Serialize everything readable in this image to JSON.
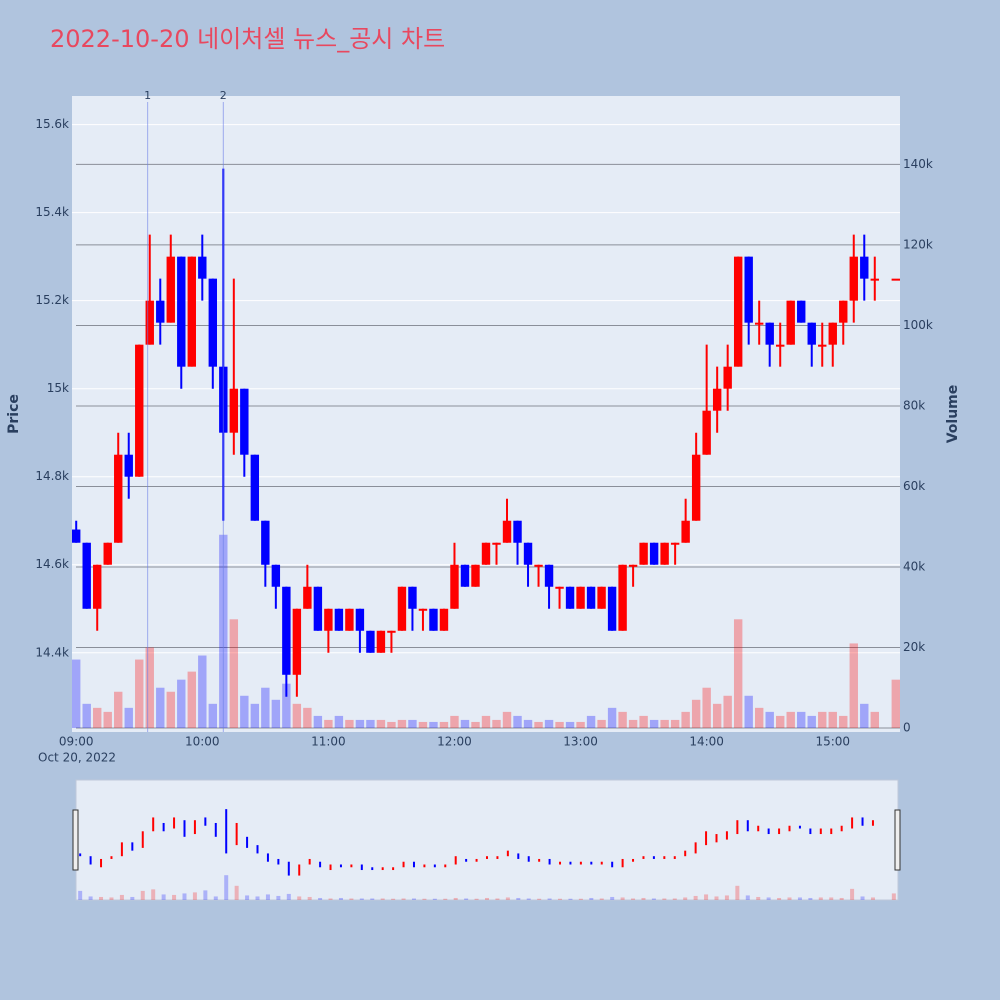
{
  "chart_data": {
    "type": "candlestick",
    "title": "2022-10-20 네이처셀 뉴스_공시 차트",
    "y_title": "Price",
    "y2_title": "Volume",
    "x_date_label": "Oct 20, 2022",
    "up_color": "#ff0000",
    "down_color": "#0000ff",
    "x": [
      "09:00",
      "09:05",
      "09:10",
      "09:15",
      "09:20",
      "09:25",
      "09:30",
      "09:35",
      "09:40",
      "09:45",
      "09:50",
      "09:55",
      "10:00",
      "10:05",
      "10:10",
      "10:15",
      "10:20",
      "10:25",
      "10:30",
      "10:35",
      "10:40",
      "10:45",
      "10:50",
      "10:55",
      "11:00",
      "11:05",
      "11:10",
      "11:15",
      "11:20",
      "11:25",
      "11:30",
      "11:35",
      "11:40",
      "11:45",
      "11:50",
      "11:55",
      "12:00",
      "12:05",
      "12:10",
      "12:15",
      "12:20",
      "12:25",
      "12:30",
      "12:35",
      "12:40",
      "12:45",
      "12:50",
      "12:55",
      "13:00",
      "13:05",
      "13:10",
      "13:15",
      "13:20",
      "13:25",
      "13:30",
      "13:35",
      "13:40",
      "13:45",
      "13:50",
      "13:55",
      "14:00",
      "14:05",
      "14:10",
      "14:15",
      "14:20",
      "14:25",
      "14:30",
      "14:35",
      "14:40",
      "14:45",
      "14:50",
      "14:55",
      "15:00",
      "15:05",
      "15:10",
      "15:15",
      "15:20",
      "15:30"
    ],
    "open": [
      14680,
      14650,
      14500,
      14600,
      14650,
      14850,
      14800,
      15100,
      15200,
      15150,
      15300,
      15050,
      15300,
      15250,
      15050,
      14900,
      15000,
      14850,
      14700,
      14600,
      14550,
      14350,
      14500,
      14550,
      14450,
      14500,
      14450,
      14500,
      14450,
      14400,
      14450,
      14450,
      14550,
      14500,
      14500,
      14450,
      14500,
      14600,
      14550,
      14600,
      14650,
      14650,
      14700,
      14650,
      14600,
      14600,
      14550,
      14550,
      14500,
      14550,
      14500,
      14550,
      14450,
      14600,
      14600,
      14650,
      14600,
      14650,
      14650,
      14700,
      14850,
      14950,
      15000,
      15050,
      15300,
      15150,
      15150,
      15100,
      15100,
      15200,
      15150,
      15100,
      15100,
      15150,
      15200,
      15300,
      15250,
      15250
    ],
    "high": [
      14700,
      14650,
      14600,
      14650,
      14900,
      14900,
      15100,
      15350,
      15250,
      15350,
      15300,
      15300,
      15350,
      15250,
      15500,
      15250,
      15000,
      14850,
      14700,
      14600,
      14550,
      14500,
      14600,
      14550,
      14500,
      14500,
      14500,
      14500,
      14450,
      14450,
      14450,
      14550,
      14550,
      14500,
      14500,
      14500,
      14650,
      14600,
      14600,
      14650,
      14650,
      14750,
      14700,
      14650,
      14600,
      14600,
      14550,
      14550,
      14550,
      14550,
      14550,
      14550,
      14600,
      14600,
      14650,
      14650,
      14650,
      14650,
      14750,
      14900,
      15100,
      15050,
      15100,
      15300,
      15300,
      15200,
      15150,
      15150,
      15200,
      15200,
      15150,
      15150,
      15150,
      15200,
      15350,
      15350,
      15300,
      15250
    ],
    "low": [
      14650,
      14500,
      14450,
      14600,
      14650,
      14750,
      14800,
      15100,
      15100,
      15150,
      15000,
      15050,
      15200,
      15000,
      14700,
      14850,
      14800,
      14700,
      14550,
      14500,
      14300,
      14300,
      14500,
      14450,
      14400,
      14450,
      14450,
      14400,
      14400,
      14400,
      14400,
      14450,
      14450,
      14450,
      14450,
      14450,
      14500,
      14550,
      14550,
      14600,
      14600,
      14650,
      14600,
      14550,
      14550,
      14500,
      14500,
      14500,
      14500,
      14500,
      14500,
      14450,
      14450,
      14550,
      14600,
      14600,
      14600,
      14600,
      14650,
      14700,
      14850,
      14900,
      14950,
      15050,
      15100,
      15100,
      15050,
      15050,
      15100,
      15150,
      15050,
      15050,
      15050,
      15100,
      15150,
      15200,
      15200,
      15250
    ],
    "close": [
      14650,
      14500,
      14600,
      14650,
      14850,
      14800,
      15100,
      15200,
      15150,
      15300,
      15050,
      15300,
      15250,
      15050,
      14900,
      15000,
      14850,
      14700,
      14600,
      14550,
      14350,
      14500,
      14550,
      14450,
      14500,
      14450,
      14500,
      14450,
      14400,
      14450,
      14450,
      14550,
      14500,
      14500,
      14450,
      14500,
      14600,
      14550,
      14600,
      14650,
      14650,
      14700,
      14650,
      14600,
      14600,
      14550,
      14550,
      14500,
      14550,
      14500,
      14550,
      14450,
      14600,
      14600,
      14650,
      14600,
      14650,
      14650,
      14700,
      14850,
      14950,
      15000,
      15050,
      15300,
      15150,
      15150,
      15100,
      15100,
      15200,
      15150,
      15100,
      15100,
      15150,
      15200,
      15300,
      15250,
      15250,
      15250
    ],
    "volume": [
      17000,
      6000,
      5000,
      4000,
      9000,
      5000,
      17000,
      20000,
      10000,
      9000,
      12000,
      14000,
      18000,
      6000,
      48000,
      27000,
      8000,
      6000,
      10000,
      7000,
      11000,
      6000,
      5000,
      3000,
      2000,
      3000,
      2000,
      2000,
      2000,
      2000,
      1500,
      2000,
      2000,
      1500,
      1500,
      1500,
      3000,
      2000,
      1500,
      3000,
      2000,
      4000,
      3000,
      2000,
      1500,
      2000,
      1500,
      1500,
      1500,
      3000,
      2000,
      5000,
      4000,
      2000,
      3000,
      2000,
      2000,
      2000,
      4000,
      7000,
      10000,
      6000,
      8000,
      27000,
      8000,
      5000,
      4000,
      3000,
      4000,
      4000,
      3000,
      4000,
      4000,
      3000,
      21000,
      6000,
      4000,
      12000
    ],
    "xlim": [
      "08:58",
      "15:32"
    ],
    "xticks": [
      "09:00",
      "10:00",
      "11:00",
      "12:00",
      "13:00",
      "14:00",
      "15:00"
    ],
    "ylim": [
      14220,
      15665
    ],
    "yticks": [
      {
        "value": 14400,
        "label": "14.4k"
      },
      {
        "value": 14600,
        "label": "14.6k"
      },
      {
        "value": 14800,
        "label": "14.8k"
      },
      {
        "value": 15000,
        "label": "15k"
      },
      {
        "value": 15200,
        "label": "15.2k"
      },
      {
        "value": 15400,
        "label": "15.4k"
      },
      {
        "value": 15600,
        "label": "15.6k"
      }
    ],
    "y2lim": [
      -1000,
      157000
    ],
    "y2ticks": [
      0,
      {
        "value": 20000,
        "label": "20k"
      },
      {
        "value": 40000,
        "label": "40k"
      },
      {
        "value": 60000,
        "label": "60k"
      },
      {
        "value": 80000,
        "label": "80k"
      },
      {
        "value": 100000,
        "label": "100k"
      },
      {
        "value": 120000,
        "label": "120k"
      },
      {
        "value": 140000,
        "label": "140k"
      }
    ],
    "annotations": [
      {
        "x": "09:34",
        "text": "1"
      },
      {
        "x": "10:10",
        "text": "2"
      }
    ]
  }
}
